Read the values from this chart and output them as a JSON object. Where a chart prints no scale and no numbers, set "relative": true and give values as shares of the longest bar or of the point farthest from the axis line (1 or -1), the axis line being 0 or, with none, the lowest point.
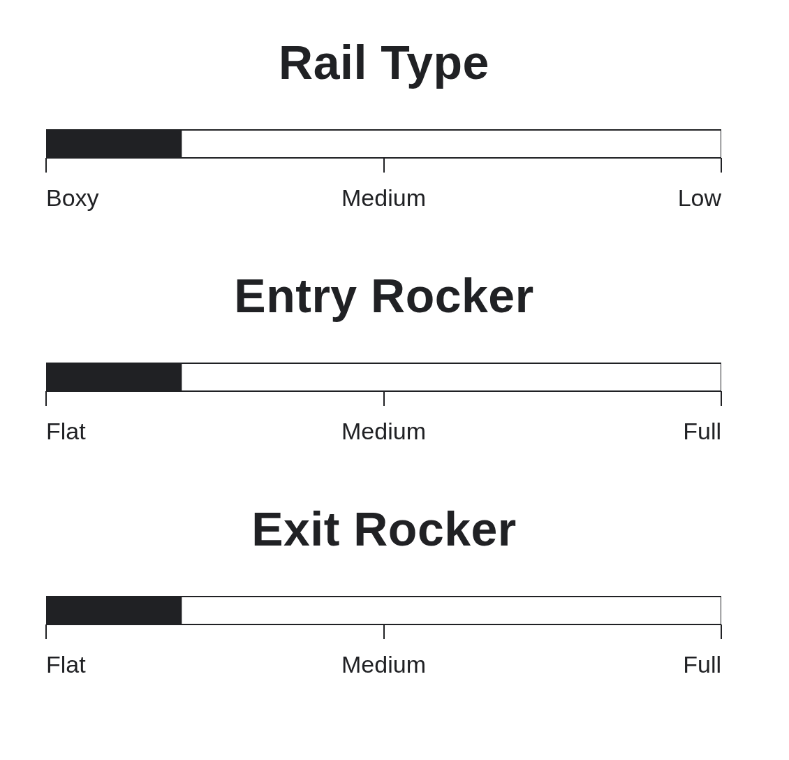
{
  "chart_data": [
    {
      "type": "bar",
      "title": "Rail Type",
      "orientation": "horizontal",
      "stacked": true,
      "relative": true,
      "categories": [
        null
      ],
      "series": [
        {
          "color": "#202124",
          "values": [
            0.2
          ]
        },
        {
          "color": "#ffffff",
          "values": [
            0.8
          ]
        }
      ],
      "annotations": [
        "Boxy",
        "Medium",
        "Low"
      ]
    },
    {
      "type": "bar",
      "title": "Entry Rocker",
      "orientation": "horizontal",
      "stacked": true,
      "relative": true,
      "categories": [
        null
      ],
      "series": [
        {
          "color": "#202124",
          "values": [
            0.2
          ]
        },
        {
          "color": "#ffffff",
          "values": [
            0.8
          ]
        }
      ],
      "annotations": [
        "Flat",
        "Medium",
        "Full"
      ]
    },
    {
      "type": "bar",
      "title": "Exit Rocker",
      "orientation": "horizontal",
      "stacked": true,
      "relative": true,
      "categories": [
        null
      ],
      "series": [
        {
          "color": "#202124",
          "values": [
            0.2
          ]
        },
        {
          "color": "#ffffff",
          "values": [
            0.8
          ]
        }
      ],
      "annotations": [
        "Flat",
        "Medium",
        "Full"
      ]
    }
  ]
}
